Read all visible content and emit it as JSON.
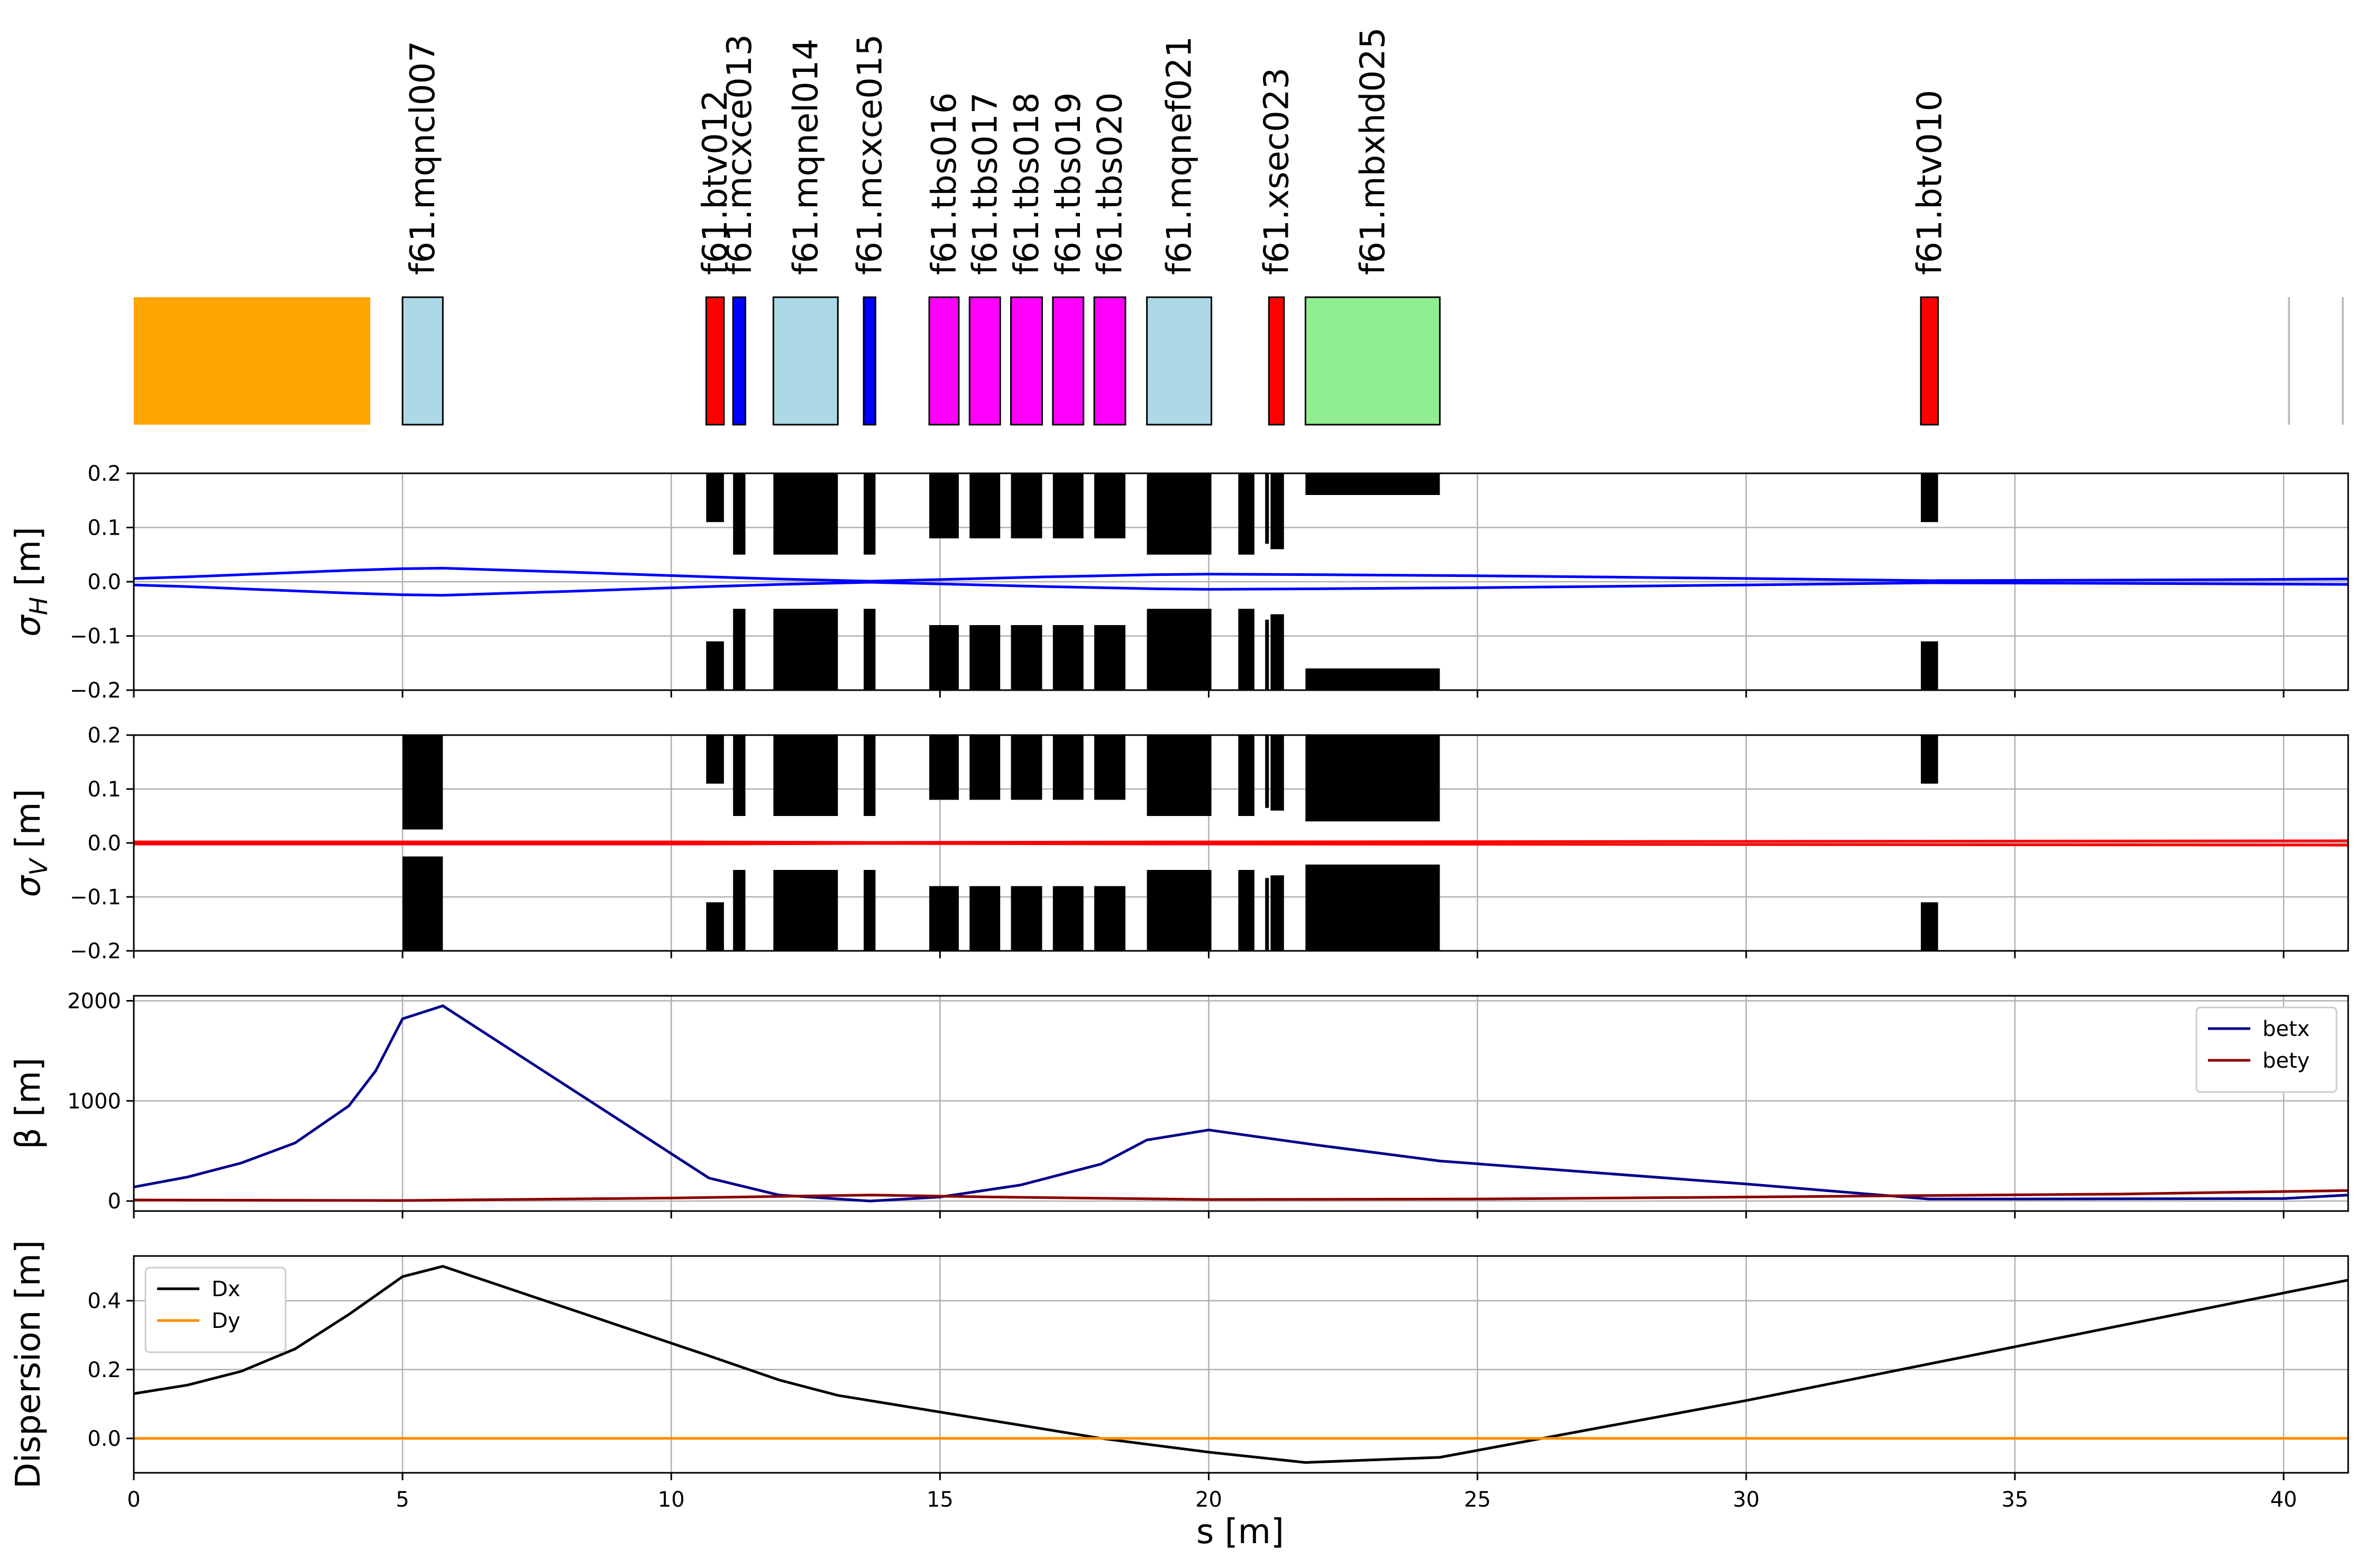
{
  "figure": {
    "xlabel": "s [m]"
  },
  "chart_data": [
    {
      "type": "layout",
      "elements": [
        {
          "label": "",
          "s_start": 0.0,
          "s_end": 4.4,
          "color": "#ffa500"
        },
        {
          "label": "f61.mqncl007",
          "s_start": 5.0,
          "s_end": 5.75,
          "color": "#add8e6"
        },
        {
          "label": "f61.btv012",
          "s_start": 10.65,
          "s_end": 10.98,
          "color": "#ff0000"
        },
        {
          "label": "f61.mcxce013",
          "s_start": 11.15,
          "s_end": 11.38,
          "color": "#0000ff"
        },
        {
          "label": "f61.mqnel014",
          "s_start": 11.9,
          "s_end": 13.1,
          "color": "#add8e6"
        },
        {
          "label": "f61.mcxce015",
          "s_start": 13.58,
          "s_end": 13.8,
          "color": "#0000ff"
        },
        {
          "label": "f61.tbs016",
          "s_start": 14.8,
          "s_end": 15.35,
          "color": "#ff00ff"
        },
        {
          "label": "f61.tbs017",
          "s_start": 15.55,
          "s_end": 16.12,
          "color": "#ff00ff"
        },
        {
          "label": "f61.tbs018",
          "s_start": 16.32,
          "s_end": 16.9,
          "color": "#ff00ff"
        },
        {
          "label": "f61.tbs019",
          "s_start": 17.1,
          "s_end": 17.67,
          "color": "#ff00ff"
        },
        {
          "label": "f61.tbs020",
          "s_start": 17.87,
          "s_end": 18.45,
          "color": "#ff00ff"
        },
        {
          "label": "f61.mqnef021",
          "s_start": 18.85,
          "s_end": 20.05,
          "color": "#add8e6"
        },
        {
          "label": "f61.xsec023",
          "s_start": 21.12,
          "s_end": 21.4,
          "color": "#ff0000"
        },
        {
          "label": "f61.mbxhd025",
          "s_start": 21.8,
          "s_end": 24.3,
          "color": "#90ee90"
        },
        {
          "label": "f61.btv010",
          "s_start": 33.25,
          "s_end": 33.57,
          "color": "#ff0000"
        }
      ],
      "markers_s": [
        40.1,
        41.1
      ]
    },
    {
      "type": "line",
      "ylabel": "σH [m]",
      "ylim": [
        -0.2,
        0.2
      ],
      "yticks": [
        "−0.2",
        "−0.1",
        "0.0",
        "0.1",
        "0.2"
      ],
      "grid": true,
      "series": [
        {
          "color": "#0000ff",
          "x": [
            0,
            1,
            2,
            3,
            4,
            5,
            5.75,
            8,
            10.7,
            12,
            13.7,
            15,
            17,
            19,
            20,
            22,
            25,
            30,
            33.4,
            37,
            41.2
          ],
          "y": [
            0.006,
            0.009,
            0.013,
            0.017,
            0.021,
            0.024,
            0.025,
            0.018,
            0.009,
            0.005,
            0.001,
            0.004,
            0.009,
            0.013,
            0.014,
            0.013,
            0.011,
            0.006,
            0.002,
            0.003,
            0.005
          ]
        }
      ],
      "apertures": [
        {
          "s_start": 5.0,
          "s_end": 5.75,
          "half": 0.2
        },
        {
          "s_start": 10.65,
          "s_end": 10.98,
          "half": 0.11
        },
        {
          "s_start": 11.15,
          "s_end": 11.38,
          "half": 0.05
        },
        {
          "s_start": 11.9,
          "s_end": 13.1,
          "half": 0.05
        },
        {
          "s_start": 13.58,
          "s_end": 13.8,
          "half": 0.05
        },
        {
          "s_start": 14.8,
          "s_end": 15.35,
          "half": 0.08
        },
        {
          "s_start": 15.55,
          "s_end": 16.12,
          "half": 0.08
        },
        {
          "s_start": 16.32,
          "s_end": 16.9,
          "half": 0.08
        },
        {
          "s_start": 17.1,
          "s_end": 17.67,
          "half": 0.08
        },
        {
          "s_start": 17.87,
          "s_end": 18.45,
          "half": 0.08
        },
        {
          "s_start": 18.85,
          "s_end": 20.05,
          "half": 0.05
        },
        {
          "s_start": 20.55,
          "s_end": 20.85,
          "half": 0.05
        },
        {
          "s_start": 21.05,
          "s_end": 21.12,
          "half": 0.07
        },
        {
          "s_start": 21.15,
          "s_end": 21.4,
          "half": 0.06
        },
        {
          "s_start": 21.8,
          "s_end": 24.3,
          "half": 0.16
        },
        {
          "s_start": 33.25,
          "s_end": 33.57,
          "half": 0.11
        }
      ]
    },
    {
      "type": "line",
      "ylabel": "σV [m]",
      "ylim": [
        -0.2,
        0.2
      ],
      "yticks": [
        "−0.2",
        "−0.1",
        "0.0",
        "0.1",
        "0.2"
      ],
      "grid": true,
      "series": [
        {
          "color": "#ff0000",
          "x": [
            0,
            10,
            13.7,
            20,
            30,
            41.2
          ],
          "y": [
            0.002,
            0.002,
            0.001,
            0.002,
            0.003,
            0.004
          ]
        }
      ],
      "apertures": [
        {
          "s_start": 5.0,
          "s_end": 5.75,
          "half": 0.025
        },
        {
          "s_start": 10.65,
          "s_end": 10.98,
          "half": 0.11
        },
        {
          "s_start": 11.15,
          "s_end": 11.38,
          "half": 0.05
        },
        {
          "s_start": 11.9,
          "s_end": 13.1,
          "half": 0.05
        },
        {
          "s_start": 13.58,
          "s_end": 13.8,
          "half": 0.05
        },
        {
          "s_start": 14.8,
          "s_end": 15.35,
          "half": 0.08
        },
        {
          "s_start": 15.55,
          "s_end": 16.12,
          "half": 0.08
        },
        {
          "s_start": 16.32,
          "s_end": 16.9,
          "half": 0.08
        },
        {
          "s_start": 17.1,
          "s_end": 17.67,
          "half": 0.08
        },
        {
          "s_start": 17.87,
          "s_end": 18.45,
          "half": 0.08
        },
        {
          "s_start": 18.85,
          "s_end": 20.05,
          "half": 0.05
        },
        {
          "s_start": 20.55,
          "s_end": 20.85,
          "half": 0.05
        },
        {
          "s_start": 21.05,
          "s_end": 21.12,
          "half": 0.065
        },
        {
          "s_start": 21.15,
          "s_end": 21.4,
          "half": 0.06
        },
        {
          "s_start": 21.8,
          "s_end": 24.3,
          "half": 0.04
        },
        {
          "s_start": 33.25,
          "s_end": 33.57,
          "half": 0.11
        }
      ]
    },
    {
      "type": "line",
      "ylabel": "β [m]",
      "ylim": [
        -100,
        2050
      ],
      "yticks": [
        "0",
        "1000",
        "2000"
      ],
      "grid": true,
      "legend": "top-right",
      "series": [
        {
          "name": "betx",
          "color": "#00008b",
          "x": [
            0,
            1,
            2,
            3,
            4,
            4.5,
            5,
            5.75,
            10.7,
            12,
            13.7,
            15,
            16.5,
            18,
            18.85,
            20,
            22,
            24.3,
            30,
            33.4,
            35,
            40,
            41.2
          ],
          "y": [
            140,
            240,
            380,
            580,
            950,
            1300,
            1820,
            1950,
            230,
            60,
            0,
            40,
            160,
            370,
            610,
            710,
            560,
            400,
            170,
            20,
            20,
            25,
            60
          ]
        },
        {
          "name": "bety",
          "color": "#8b0000",
          "x": [
            0,
            5,
            10,
            13.7,
            16,
            20,
            25,
            30,
            33.4,
            37,
            41.2
          ],
          "y": [
            10,
            5,
            30,
            60,
            40,
            15,
            20,
            40,
            55,
            70,
            105
          ]
        }
      ]
    },
    {
      "type": "line",
      "ylabel": "Dispersion [m]",
      "xlabel": "s [m]",
      "ylim": [
        -0.1,
        0.53
      ],
      "xlim": [
        0,
        41.2
      ],
      "xticks": [
        "0",
        "5",
        "10",
        "15",
        "20",
        "25",
        "30",
        "35",
        "40"
      ],
      "yticks": [
        "0.0",
        "0.2",
        "0.4"
      ],
      "grid": true,
      "legend": "top-left",
      "series": [
        {
          "name": "Dx",
          "color": "#000000",
          "x": [
            0,
            1,
            2,
            3,
            4,
            5,
            5.75,
            10.7,
            12,
            13.1,
            18,
            20,
            21.8,
            24.3,
            30,
            41.2
          ],
          "y": [
            0.13,
            0.155,
            0.195,
            0.26,
            0.36,
            0.47,
            0.5,
            0.24,
            0.17,
            0.125,
            0.0,
            -0.04,
            -0.07,
            -0.055,
            0.11,
            0.46
          ]
        },
        {
          "name": "Dy",
          "color": "#ff8c00",
          "x": [
            0,
            41.2
          ],
          "y": [
            0,
            0
          ]
        }
      ]
    }
  ]
}
